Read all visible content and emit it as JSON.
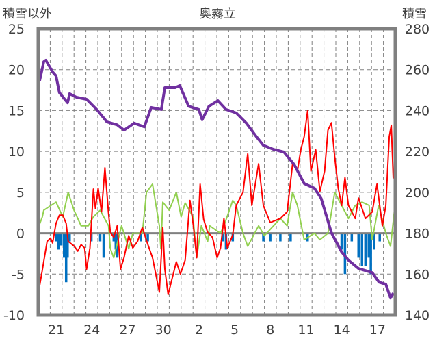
{
  "chart_data": {
    "type": "line",
    "title": "奥霧立",
    "ylabel_left": "積雪以外",
    "ylabel_right": "積雪",
    "ylim_left": [
      -10,
      25
    ],
    "ylim_right": [
      140,
      280
    ],
    "yticks_left": [
      "-10",
      "-5",
      "0",
      "5",
      "10",
      "15",
      "20",
      "25"
    ],
    "yticks_right": [
      "140",
      "160",
      "180",
      "200",
      "220",
      "240",
      "260",
      "280"
    ],
    "xlim_days": [
      0,
      30
    ],
    "xtick_positions": [
      1.5,
      4.5,
      7.5,
      10.5,
      13.5,
      16.5,
      19.5,
      22.5,
      25.5,
      28.5
    ],
    "xtick_labels": [
      "21",
      "24",
      "27",
      "30",
      "2",
      "5",
      "8",
      "11",
      "14",
      "17"
    ],
    "grid": true,
    "colors": {
      "red": "#ff0000",
      "green": "#92d050",
      "purple": "#7030a0",
      "blue": "#0070c0",
      "frame": "#808080"
    },
    "series": [
      {
        "name": "red",
        "axis": "left",
        "points": [
          [
            0.06,
            -6.9
          ],
          [
            0.34,
            -4.5
          ],
          [
            0.74,
            -1
          ],
          [
            1.03,
            -0.6
          ],
          [
            1.2,
            -1.2
          ],
          [
            1.49,
            1.2
          ],
          [
            1.77,
            2.2
          ],
          [
            2.06,
            2.2
          ],
          [
            2.34,
            1.2
          ],
          [
            2.51,
            -1
          ],
          [
            3.03,
            -1.6
          ],
          [
            3.31,
            -2.2
          ],
          [
            3.6,
            -1.4
          ],
          [
            3.89,
            -1.8
          ],
          [
            4.06,
            -4.4
          ],
          [
            4.34,
            -1.8
          ],
          [
            4.63,
            5.4
          ],
          [
            4.8,
            3.0
          ],
          [
            5.03,
            5.5
          ],
          [
            5.31,
            2.6
          ],
          [
            5.6,
            8
          ],
          [
            5.89,
            2.6
          ],
          [
            6.06,
            0.1
          ],
          [
            6.34,
            -0.5
          ],
          [
            6.63,
            0.9
          ],
          [
            6.91,
            -4.4
          ],
          [
            7.2,
            -3
          ],
          [
            7.6,
            -0.3
          ],
          [
            7.94,
            -1.8
          ],
          [
            8.34,
            -1
          ],
          [
            8.74,
            0.7
          ],
          [
            9.09,
            -0.9
          ],
          [
            9.6,
            -3
          ],
          [
            10.17,
            -7.2
          ],
          [
            10.46,
            0.7
          ],
          [
            10.63,
            -4.4
          ],
          [
            10.91,
            -7.5
          ],
          [
            11.2,
            -5.8
          ],
          [
            11.6,
            -3.5
          ],
          [
            11.94,
            -5
          ],
          [
            12.34,
            -3.3
          ],
          [
            12.74,
            4
          ],
          [
            13.03,
            0.9
          ],
          [
            13.31,
            -3
          ],
          [
            13.6,
            6
          ],
          [
            13.89,
            1.7
          ],
          [
            14.23,
            0.1
          ],
          [
            14.63,
            -0.5
          ],
          [
            15.03,
            -3
          ],
          [
            15.31,
            -1.8
          ],
          [
            15.6,
            1.8
          ],
          [
            15.89,
            -1.8
          ],
          [
            16.34,
            -0.2
          ],
          [
            16.63,
            3.4
          ],
          [
            17.2,
            5
          ],
          [
            17.6,
            9.7
          ],
          [
            17.94,
            3.4
          ],
          [
            18.51,
            8.5
          ],
          [
            18.91,
            3.4
          ],
          [
            19.49,
            1.3
          ],
          [
            20.34,
            1.8
          ],
          [
            20.91,
            2.6
          ],
          [
            21.37,
            8.5
          ],
          [
            21.77,
            7.6
          ],
          [
            22.06,
            10.2
          ],
          [
            22.34,
            11.8
          ],
          [
            22.63,
            15
          ],
          [
            22.91,
            7.6
          ],
          [
            23.31,
            10.2
          ],
          [
            23.66,
            5.1
          ],
          [
            24.06,
            7.6
          ],
          [
            24.34,
            12.6
          ],
          [
            24.63,
            13.5
          ],
          [
            24.91,
            9.3
          ],
          [
            25.2,
            5.5
          ],
          [
            25.49,
            3.4
          ],
          [
            25.77,
            6.8
          ],
          [
            26.06,
            3.4
          ],
          [
            26.63,
            1.8
          ],
          [
            26.91,
            4.3
          ],
          [
            27.49,
            1.8
          ],
          [
            28.06,
            2.6
          ],
          [
            28.46,
            6
          ],
          [
            28.91,
            0.9
          ],
          [
            29.2,
            3.4
          ],
          [
            29.49,
            11.8
          ],
          [
            29.66,
            13.2
          ],
          [
            29.83,
            6.7
          ]
        ]
      },
      {
        "name": "green",
        "axis": "left",
        "points": [
          [
            0.06,
            0.9
          ],
          [
            0.34,
            2
          ],
          [
            0.46,
            2.8
          ],
          [
            1.49,
            3.8
          ],
          [
            2.06,
            2
          ],
          [
            2.51,
            5
          ],
          [
            3.0,
            2.8
          ],
          [
            3.6,
            0.9
          ],
          [
            4.2,
            0.9
          ],
          [
            4.63,
            2
          ],
          [
            5.2,
            2.8
          ],
          [
            5.9,
            0.9
          ],
          [
            6.06,
            -1.9
          ],
          [
            6.34,
            -3
          ],
          [
            7.0,
            0.9
          ],
          [
            7.6,
            -1.9
          ],
          [
            7.94,
            0
          ],
          [
            8.74,
            0
          ],
          [
            9.09,
            5
          ],
          [
            9.6,
            6
          ],
          [
            10.17,
            0.9
          ],
          [
            10.3,
            -1.9
          ],
          [
            10.46,
            3.8
          ],
          [
            11.0,
            2.8
          ],
          [
            11.6,
            5
          ],
          [
            12.0,
            2
          ],
          [
            12.34,
            3.7
          ],
          [
            13.0,
            2
          ],
          [
            13.31,
            -3
          ],
          [
            13.7,
            0.9
          ],
          [
            14.23,
            -1
          ],
          [
            14.4,
            0.9
          ],
          [
            15.3,
            0
          ],
          [
            15.6,
            0.9
          ],
          [
            16.34,
            4
          ],
          [
            16.63,
            3.4
          ],
          [
            17.2,
            0
          ],
          [
            17.6,
            -1.6
          ],
          [
            18.51,
            0.9
          ],
          [
            19.0,
            -0.3
          ],
          [
            20.34,
            1.8
          ],
          [
            20.91,
            0.9
          ],
          [
            21.37,
            5
          ],
          [
            21.77,
            3.4
          ],
          [
            22.34,
            -0.8
          ],
          [
            23.2,
            0
          ],
          [
            23.66,
            -0.8
          ],
          [
            24.34,
            0
          ],
          [
            24.91,
            5
          ],
          [
            25.49,
            3.4
          ],
          [
            26.06,
            1.8
          ],
          [
            26.63,
            3.4
          ],
          [
            27.2,
            3.8
          ],
          [
            27.8,
            3.4
          ],
          [
            28.06,
            -0.8
          ],
          [
            28.6,
            3.4
          ],
          [
            29.2,
            0
          ],
          [
            29.6,
            -1.6
          ],
          [
            29.94,
            3
          ]
        ]
      },
      {
        "name": "purple",
        "axis": "right",
        "points": [
          [
            0.11,
            254.5
          ],
          [
            0.46,
            263.9
          ],
          [
            0.63,
            264.6
          ],
          [
            1.2,
            258.9
          ],
          [
            1.49,
            257
          ],
          [
            1.77,
            248.8
          ],
          [
            2.46,
            243.8
          ],
          [
            2.63,
            248.2
          ],
          [
            3.2,
            246.5
          ],
          [
            4.06,
            245.5
          ],
          [
            4.91,
            240.5
          ],
          [
            5.77,
            234.4
          ],
          [
            6.63,
            233
          ],
          [
            7.2,
            230.4
          ],
          [
            8.06,
            233.8
          ],
          [
            8.91,
            232
          ],
          [
            9.49,
            241.5
          ],
          [
            10.34,
            240.5
          ],
          [
            10.63,
            251.2
          ],
          [
            11.49,
            251.2
          ],
          [
            11.89,
            252.2
          ],
          [
            12.63,
            242.1
          ],
          [
            13.49,
            240.5
          ],
          [
            13.77,
            235.5
          ],
          [
            14.34,
            242.1
          ],
          [
            15.09,
            244.8
          ],
          [
            15.77,
            240.5
          ],
          [
            16.63,
            238.8
          ],
          [
            17.49,
            233.8
          ],
          [
            18.34,
            227.1
          ],
          [
            18.91,
            223
          ],
          [
            19.77,
            221
          ],
          [
            20.63,
            219.7
          ],
          [
            21.49,
            213.7
          ],
          [
            22.34,
            204.3
          ],
          [
            23.2,
            202
          ],
          [
            23.77,
            197
          ],
          [
            24.63,
            180.2
          ],
          [
            25.49,
            170.8
          ],
          [
            26.06,
            166.8
          ],
          [
            26.91,
            162.7
          ],
          [
            28.06,
            160.7
          ],
          [
            28.63,
            156
          ],
          [
            29.2,
            155
          ],
          [
            29.6,
            148.3
          ],
          [
            29.83,
            150.7
          ]
        ]
      },
      {
        "name": "blue",
        "axis": "left",
        "type": "bar",
        "points": [
          [
            1.49,
            -1
          ],
          [
            1.71,
            -2
          ],
          [
            1.94,
            -1.5
          ],
          [
            2.17,
            -3
          ],
          [
            2.34,
            -6
          ],
          [
            2.46,
            -3
          ],
          [
            2.63,
            -1
          ],
          [
            4.46,
            -1
          ],
          [
            5.2,
            -1
          ],
          [
            5.49,
            -3
          ],
          [
            6.34,
            -1
          ],
          [
            6.51,
            -2
          ],
          [
            6.63,
            -3
          ],
          [
            8.63,
            -1
          ],
          [
            9.2,
            -1
          ],
          [
            15.49,
            -1
          ],
          [
            15.77,
            -2
          ],
          [
            16.34,
            -1
          ],
          [
            18.91,
            -1
          ],
          [
            19.49,
            -1
          ],
          [
            20.34,
            -1
          ],
          [
            21.2,
            -1
          ],
          [
            22.63,
            -1
          ],
          [
            25.49,
            -2
          ],
          [
            25.77,
            -5
          ],
          [
            26.34,
            -1
          ],
          [
            26.91,
            -3
          ],
          [
            27.2,
            -4
          ],
          [
            27.49,
            -4
          ],
          [
            27.77,
            -3
          ],
          [
            27.94,
            -5
          ],
          [
            28.23,
            -2
          ],
          [
            28.69,
            -1
          ]
        ]
      }
    ]
  }
}
